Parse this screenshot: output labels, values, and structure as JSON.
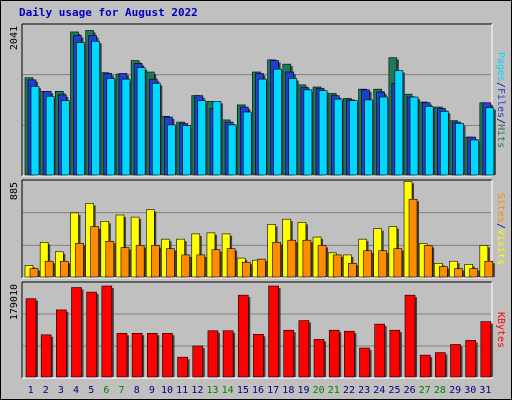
{
  "chart_data": {
    "type": "bar",
    "title": "Daily usage for August 2022",
    "days": [
      "1",
      "2",
      "3",
      "4",
      "5",
      "6",
      "7",
      "8",
      "9",
      "10",
      "11",
      "12",
      "13",
      "14",
      "15",
      "16",
      "17",
      "18",
      "19",
      "20",
      "21",
      "22",
      "23",
      "24",
      "25",
      "26",
      "27",
      "28",
      "29",
      "30",
      "31"
    ],
    "weekend_days": [
      "6",
      "7",
      "13",
      "14",
      "20",
      "21",
      "27",
      "28"
    ],
    "colors": {
      "hits": "#1b7a5a",
      "files": "#2040d0",
      "pages": "#00d8ff",
      "visits": "#ffff00",
      "sites": "#ff8c00",
      "kbytes": "#ff0000",
      "title": "#0000c0",
      "weekday_label": "#000080",
      "weekend_label": "#008000"
    },
    "top_panel": {
      "y_max_label": "2041",
      "y_max": 2041,
      "legend": [
        "Pages",
        "/",
        "Files",
        "/",
        "Hits"
      ],
      "series": [
        {
          "name": "Hits",
          "values": [
            1360,
            1170,
            1170,
            2000,
            2020,
            1430,
            1410,
            1600,
            1440,
            820,
            740,
            1110,
            1030,
            770,
            980,
            1440,
            1610,
            1550,
            1260,
            1230,
            1140,
            1070,
            1200,
            1200,
            1640,
            1130,
            1020,
            950,
            760,
            530,
            1010
          ]
        },
        {
          "name": "Files",
          "values": [
            1330,
            1170,
            1120,
            1950,
            1950,
            1420,
            1420,
            1560,
            1340,
            810,
            720,
            1110,
            930,
            740,
            950,
            1420,
            1600,
            1440,
            1220,
            1210,
            1110,
            1050,
            1190,
            1160,
            1280,
            1090,
            1010,
            930,
            740,
            530,
            1010
          ]
        },
        {
          "name": "Pages",
          "values": [
            1240,
            1100,
            1040,
            1850,
            1870,
            1350,
            1340,
            1500,
            1280,
            700,
            690,
            1040,
            1030,
            700,
            880,
            1340,
            1480,
            1350,
            1190,
            1180,
            1060,
            1040,
            1050,
            1090,
            1460,
            1090,
            960,
            890,
            720,
            490,
            940
          ]
        }
      ]
    },
    "mid_panel": {
      "y_max_label": "885",
      "y_max": 885,
      "legend": [
        "Sites",
        "/",
        "Visits"
      ],
      "series": [
        {
          "name": "Visits",
          "values": [
            110,
            330,
            240,
            610,
            700,
            530,
            590,
            570,
            640,
            360,
            360,
            410,
            420,
            410,
            180,
            160,
            500,
            550,
            520,
            380,
            230,
            210,
            360,
            460,
            480,
            910,
            320,
            130,
            150,
            120,
            300
          ]
        },
        {
          "name": "Sites",
          "values": [
            80,
            150,
            150,
            320,
            480,
            340,
            280,
            300,
            300,
            270,
            210,
            210,
            260,
            270,
            140,
            170,
            330,
            350,
            350,
            300,
            210,
            130,
            250,
            250,
            270,
            740,
            300,
            100,
            80,
            80,
            150
          ]
        }
      ]
    },
    "bottom_panel": {
      "y_max_label": "179010",
      "y_max": 179010,
      "legend": [
        "KBytes"
      ],
      "series": [
        {
          "name": "KBytes",
          "values": [
            154000,
            83000,
            132000,
            176000,
            167000,
            179010,
            86000,
            86000,
            86000,
            86000,
            39000,
            61000,
            91000,
            91000,
            161000,
            84000,
            179010,
            92000,
            111000,
            74000,
            92000,
            90000,
            57000,
            104000,
            92000,
            161000,
            43000,
            48000,
            64000,
            72000,
            109000
          ]
        }
      ]
    }
  }
}
